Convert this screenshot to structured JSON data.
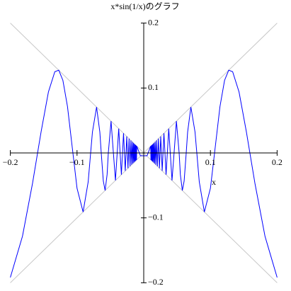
{
  "chart_data": {
    "type": "line",
    "title": "x*sin(1/x)のグラフ",
    "xlabel": "x",
    "xlim": [
      -0.2,
      0.2
    ],
    "ylim": [
      -0.2,
      0.2
    ],
    "xticks": [
      {
        "value": -0.2,
        "label": "−0.2"
      },
      {
        "value": -0.1,
        "label": "−0.1"
      },
      0.1,
      0.2
    ],
    "yticks": [
      0.2,
      0.1,
      {
        "value": -0.1,
        "label": "−0.1"
      },
      {
        "value": -0.2,
        "label": "−0.2"
      }
    ],
    "series": [
      {
        "color": "#c8c8c8",
        "x": [
          -0.2,
          0.2
        ],
        "values": [
          -0.2,
          0.2
        ]
      },
      {
        "color": "#c8c8c8",
        "x": [
          -0.2,
          0.2
        ],
        "values": [
          0.2,
          -0.2
        ]
      },
      {
        "color": "#0000ff",
        "x": [
          -0.2,
          -0.1818,
          -0.1667,
          -0.1538,
          -0.1429,
          -0.1333,
          -0.1274,
          -0.1212,
          -0.1143,
          -0.1062,
          -0.1,
          -0.0909,
          -0.0833,
          -0.0796,
          -0.0769,
          -0.0707,
          -0.0658,
          -0.0637,
          -0.0606,
          -0.0579,
          -0.0549,
          -0.0531,
          -0.049,
          -0.0455,
          -0.0424,
          -0.0398,
          -0.0375,
          -0.0335,
          -0.0303,
          -0.0277,
          -0.0255,
          -0.0236,
          -0.022,
          -0.0205,
          -0.0193,
          -0.0182,
          -0.0172,
          -0.0163,
          -0.0155,
          -0.0148,
          -0.0141,
          -0.0135,
          -0.013,
          -0.0125,
          -0.012,
          -0.0116,
          -0.0112,
          -0.0108,
          -0.0104,
          -0.005,
          0.005,
          0.0104,
          0.0108,
          0.0112,
          0.0116,
          0.012,
          0.0125,
          0.013,
          0.0135,
          0.0141,
          0.0148,
          0.0155,
          0.0163,
          0.0172,
          0.0182,
          0.0193,
          0.0205,
          0.022,
          0.0236,
          0.0255,
          0.0277,
          0.0303,
          0.0335,
          0.0375,
          0.0398,
          0.0424,
          0.0455,
          0.049,
          0.0531,
          0.0549,
          0.0579,
          0.0606,
          0.0637,
          0.0658,
          0.0707,
          0.0769,
          0.0796,
          0.0833,
          0.0909,
          0.1,
          0.1062,
          0.1143,
          0.1212,
          0.1274,
          0.1333,
          0.1429,
          0.1538,
          0.1667,
          0.1818,
          0.2
        ],
        "values": [
          -0.1918,
          -0.1283,
          -0.0466,
          0.0331,
          0.0939,
          0.1251,
          0.1274,
          0.1118,
          0.0714,
          0,
          -0.0544,
          -0.0909,
          -0.0447,
          0,
          0.0323,
          0.0707,
          0.032,
          0,
          -0.0431,
          -0.0579,
          -0.0332,
          0,
          0.049,
          0,
          -0.0424,
          0,
          0.0375,
          -0.0335,
          0.0303,
          -0.0277,
          0.0255,
          -0.0236,
          0.022,
          -0.0205,
          0.0193,
          -0.0182,
          0.0172,
          -0.0163,
          0.0155,
          -0.0148,
          0.0141,
          -0.0135,
          0.013,
          -0.0125,
          0.012,
          -0.0116,
          0.0112,
          -0.0108,
          0.0104,
          -0.0044,
          -0.0044,
          0.0104,
          -0.0108,
          0.0112,
          -0.0116,
          0.012,
          -0.0125,
          0.013,
          -0.0135,
          0.0141,
          -0.0148,
          0.0155,
          -0.0163,
          0.0172,
          -0.0182,
          0.0193,
          -0.0205,
          0.022,
          -0.0236,
          0.0255,
          -0.0277,
          0.0303,
          -0.0335,
          0.0375,
          0,
          -0.0424,
          0,
          0.049,
          0,
          -0.0332,
          -0.0579,
          -0.0431,
          0,
          0.032,
          0.0707,
          0.0323,
          0,
          -0.0447,
          -0.0909,
          -0.0544,
          0,
          0.0714,
          0.1118,
          0.1274,
          0.1251,
          0.0939,
          0.0331,
          -0.0466,
          -0.1283,
          -0.1918
        ]
      }
    ]
  }
}
